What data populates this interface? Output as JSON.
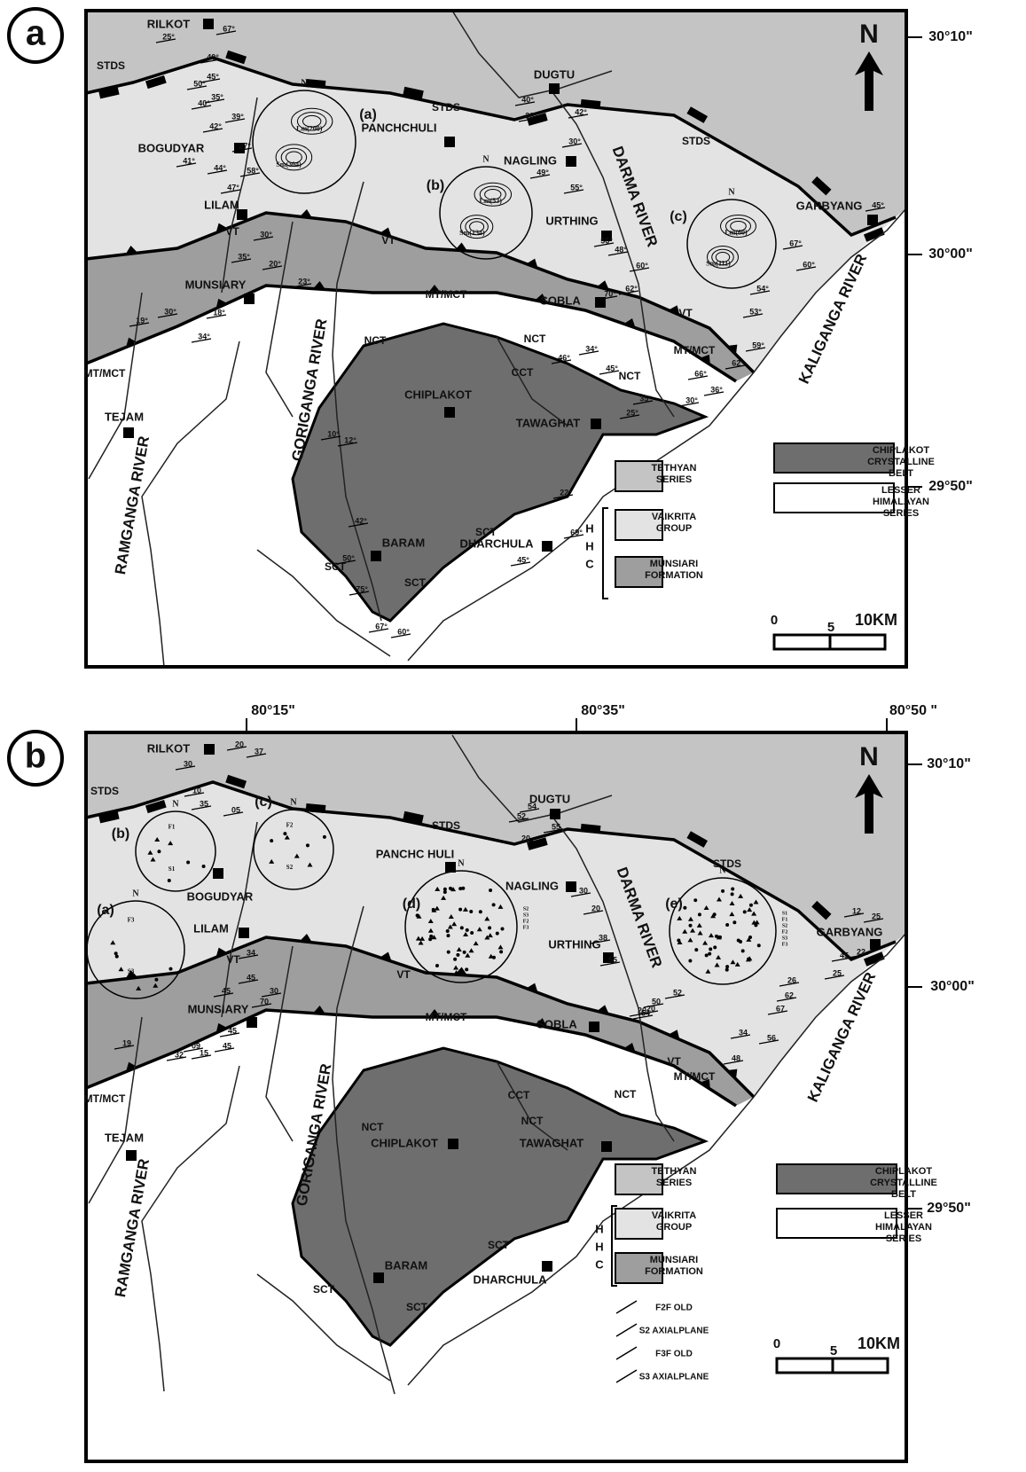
{
  "panels": [
    {
      "label": "a",
      "places": [
        "RILKOT",
        "DUGTU",
        "PANCHCHULI",
        "BOGUDYAR",
        "NAGLING",
        "LILAM",
        "URTHING",
        "GARBYANG",
        "MUNSIARY",
        "SOBLA",
        "CHIPLAKOT",
        "TAWAGHAT",
        "TEJAM",
        "BARAM",
        "DHARCHULA"
      ],
      "lines": [
        "STDS",
        "STDS",
        "STDS",
        "VT",
        "VT",
        "VT",
        "MT/MCT",
        "MT/MCT",
        "MT/MCT",
        "NCT",
        "NCT",
        "NCT",
        "CCT",
        "SCT",
        "SCT",
        "SCT"
      ],
      "rivers": [
        "DARMA RIVER",
        "KALIGANGA RIVER",
        "GORIGANGA RIVER",
        "RAMGANGA RIVER"
      ],
      "stereonets": [
        {
          "label": "(a)",
          "north": "N",
          "labels": [
            "Lm(200)",
            "Sm(304)"
          ]
        },
        {
          "label": "(b)",
          "north": "N",
          "labels": [
            "Lm(53)",
            "Sm(134)"
          ]
        },
        {
          "label": "(c)",
          "north": "N",
          "labels": [
            "Lm(60)",
            "Sm(111)"
          ]
        }
      ],
      "dips": [
        "25°",
        "67°",
        "40°",
        "45°",
        "50°",
        "35°",
        "40°",
        "42°",
        "39°",
        "27°",
        "41°",
        "44°",
        "58°",
        "47°",
        "30°",
        "35°",
        "20°",
        "23°",
        "19°",
        "30°",
        "18°",
        "34°",
        "40°",
        "20°",
        "42°",
        "30°",
        "49°",
        "55°",
        "56°",
        "48°",
        "60°",
        "70°",
        "62°",
        "46°",
        "34°",
        "45°",
        "35°",
        "25°",
        "30°",
        "36°",
        "10°",
        "12°",
        "42°",
        "50°",
        "75°",
        "67°",
        "60°",
        "22°",
        "69°",
        "45°",
        "54°",
        "53°",
        "59°",
        "66°",
        "62°",
        "67°",
        "60°",
        "45°"
      ],
      "coords": [
        "30°10\"",
        "30°00\"",
        "29°50\""
      ],
      "north": "N",
      "scale": [
        "0",
        "5",
        "10KM"
      ],
      "legend": [
        [
          "TETHYAN",
          "SERIES"
        ],
        [
          "VAIKRITA",
          "GROUP"
        ],
        [
          "MUNSIARI",
          "FORMATION"
        ],
        [
          "CHIPLAKOT",
          "CRYSTALLINE",
          "BELT"
        ],
        [
          "LESSER",
          "HIMALAYAN",
          "SERIES"
        ]
      ],
      "hhc": [
        "H",
        "H",
        "C"
      ]
    },
    {
      "label": "b",
      "places": [
        "RILKOT",
        "DUGTU",
        "PANCHC HULI",
        "BOGUDYAR",
        "NAGLING",
        "LILAM",
        "URTHING",
        "GARBYANG",
        "MUNSIARY",
        "SOBLA",
        "CHIPLAKOT",
        "TAWAGHAT",
        "TEJAM",
        "BARAM",
        "DHARCHULA"
      ],
      "lines": [
        "STDS",
        "STDS",
        "STDS",
        "VT",
        "VT",
        "VT",
        "MT/MCT",
        "MT/MCT",
        "MT/MCT",
        "NCT",
        "NCT",
        "NCT",
        "CCT",
        "SCT",
        "SCT",
        "SCT"
      ],
      "rivers": [
        "DARMA RIVER",
        "KALIGANGA RIVER",
        "GORIGANGA RIVER",
        "RAMGANGA RIVER"
      ],
      "stereonets": [
        {
          "label": "(b)",
          "north": "N",
          "labels": [
            "F1",
            "S1"
          ]
        },
        {
          "label": "(c)",
          "north": "N",
          "labels": [
            "F2",
            "S2"
          ]
        },
        {
          "label": "(a)",
          "north": "N",
          "labels": [
            "F3",
            "S3"
          ]
        },
        {
          "label": "(d)",
          "north": "N",
          "labels": [
            "S2",
            "S3",
            "F2",
            "F3"
          ]
        },
        {
          "label": "(e)",
          "north": "N",
          "labels": [
            "S1",
            "F1",
            "S2",
            "F2",
            "S3",
            "F3"
          ]
        }
      ],
      "dips": [
        "20",
        "37",
        "30",
        "10",
        "35",
        "05",
        "54",
        "52",
        "20",
        "55",
        "30",
        "20",
        "38",
        "55",
        "20",
        "34",
        "45",
        "30",
        "45",
        "70",
        "19",
        "32",
        "09",
        "15",
        "45",
        "45",
        "52",
        "50",
        "20",
        "54",
        "12",
        "25",
        "22",
        "45",
        "26",
        "25",
        "62",
        "67",
        "34",
        "56",
        "48"
      ],
      "coords": [
        "30°10\"",
        "30°00\"",
        "29°50\"",
        "80°15\"",
        "80°35\"",
        "80°50 \""
      ],
      "north": "N",
      "scale": [
        "0",
        "5",
        "10KM"
      ],
      "legend": [
        [
          "TETHYAN",
          "SERIES"
        ],
        [
          "VAIKRITA",
          "GROUP"
        ],
        [
          "MUNSIARI",
          "FORMATION"
        ],
        [
          "CHIPLAKOT",
          "CRYSTALLINE",
          "BELT"
        ],
        [
          "LESSER",
          "HIMALAYAN",
          "SERIES"
        ]
      ],
      "hhc": [
        "H",
        "H",
        "C"
      ],
      "key": [
        "F2F OLD",
        "S2 AXIALPLANE",
        "F3F OLD",
        "S3 AXIALPLANE"
      ]
    }
  ]
}
